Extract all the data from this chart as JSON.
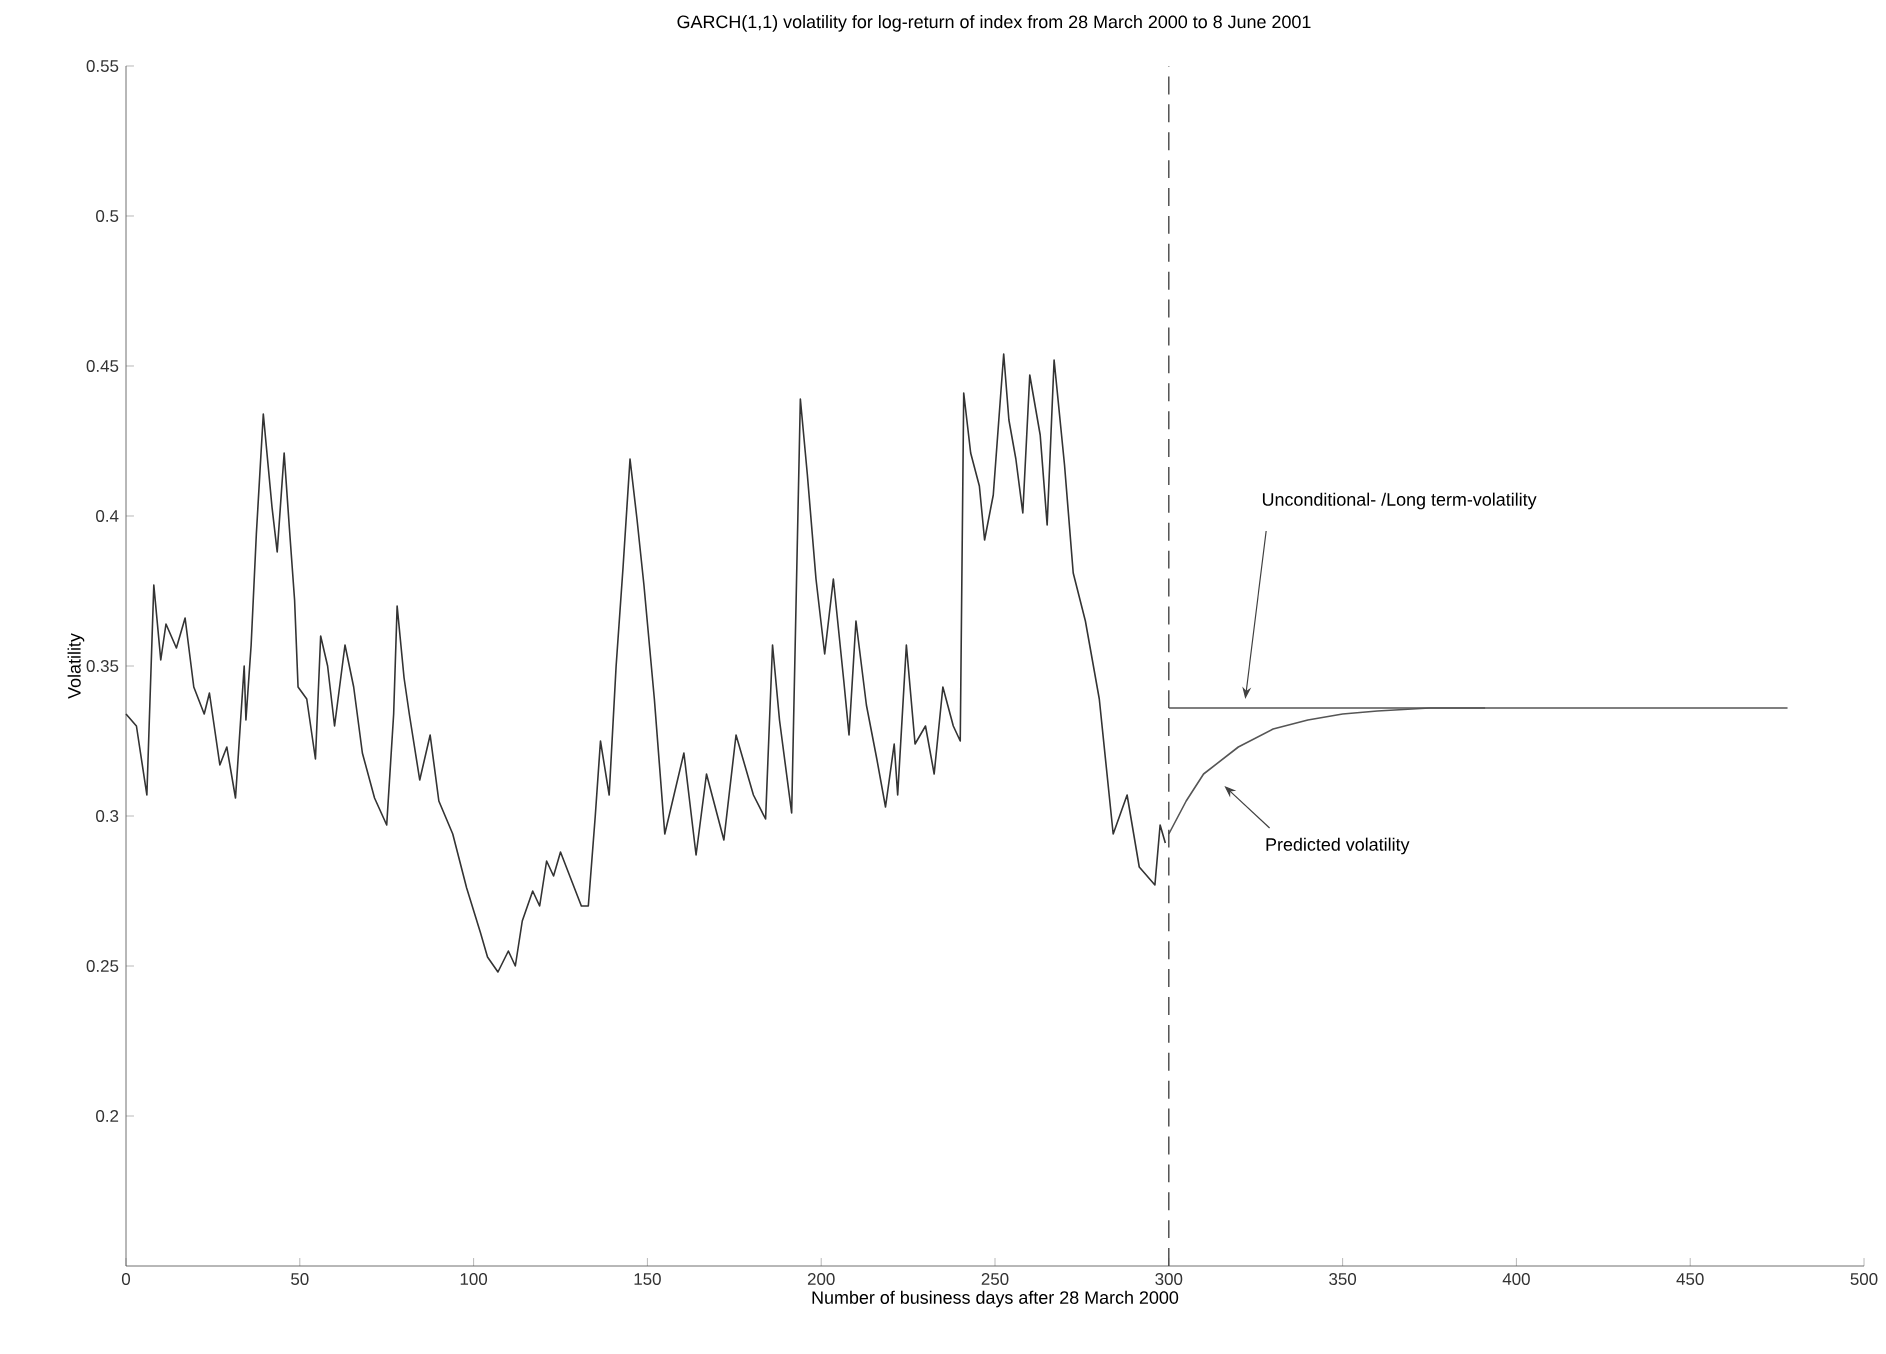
{
  "chart_data": {
    "type": "line",
    "title": "GARCH(1,1) volatility for log-return of index from 28 March 2000 to 8 June 2001",
    "xlabel": "Number of business days after 28 March 2000",
    "ylabel": "Volatility",
    "xlim": [
      0,
      500
    ],
    "ylim": [
      0.15,
      0.55
    ],
    "xticks": [
      0,
      50,
      100,
      150,
      200,
      250,
      300,
      350,
      400,
      450,
      500
    ],
    "yticks": [
      0.2,
      0.25,
      0.3,
      0.35,
      0.4,
      0.45,
      0.5,
      0.55
    ],
    "grid": false,
    "marker": "none",
    "line_style": "solid",
    "tick_labels": true,
    "series": [
      {
        "color": "#333333",
        "x": [
          0,
          3,
          6,
          8,
          10,
          11.5,
          14.5,
          17,
          19.5,
          22.5,
          24,
          27,
          29,
          31.5,
          34,
          34.5,
          36,
          37.5,
          39.5,
          42,
          43.5,
          45.5,
          47,
          48.5,
          49.5,
          52,
          54.5,
          56,
          58,
          60,
          63,
          65.5,
          68,
          71.5,
          75,
          77,
          78,
          80,
          81.5,
          84.5,
          87.5,
          90,
          94,
          98,
          102,
          104,
          107,
          110,
          112,
          114,
          117,
          119,
          121,
          123,
          125,
          127,
          129,
          131,
          133,
          135,
          136.5,
          139,
          141,
          143,
          145,
          147,
          149,
          152,
          155,
          160.5,
          164,
          167,
          172,
          175.5,
          180.5,
          184,
          186,
          188,
          191.5,
          194,
          196,
          198.5,
          201,
          203.5,
          206.5,
          208,
          210,
          213,
          216,
          218.5,
          221,
          222,
          224.5,
          227,
          230,
          232.5,
          235,
          238,
          240,
          241,
          243,
          245.5,
          247,
          249.5,
          252.5,
          254,
          256,
          258,
          260,
          263,
          265,
          267,
          270,
          272.5,
          276,
          280,
          284,
          288,
          291.5,
          296,
          297.5,
          299
        ],
        "values": [
          0.334,
          0.33,
          0.307,
          0.377,
          0.352,
          0.364,
          0.356,
          0.366,
          0.343,
          0.334,
          0.341,
          0.317,
          0.323,
          0.306,
          0.35,
          0.332,
          0.357,
          0.394,
          0.434,
          0.403,
          0.388,
          0.421,
          0.396,
          0.372,
          0.343,
          0.339,
          0.319,
          0.36,
          0.35,
          0.33,
          0.357,
          0.343,
          0.321,
          0.306,
          0.297,
          0.334,
          0.37,
          0.346,
          0.334,
          0.312,
          0.327,
          0.305,
          0.294,
          0.276,
          0.261,
          0.253,
          0.248,
          0.255,
          0.25,
          0.265,
          0.275,
          0.27,
          0.285,
          0.28,
          0.288,
          0.282,
          0.276,
          0.27,
          0.27,
          0.3,
          0.325,
          0.307,
          0.35,
          0.383,
          0.419,
          0.399,
          0.377,
          0.339,
          0.294,
          0.321,
          0.287,
          0.314,
          0.292,
          0.327,
          0.307,
          0.299,
          0.357,
          0.332,
          0.301,
          0.439,
          0.414,
          0.379,
          0.354,
          0.379,
          0.345,
          0.327,
          0.365,
          0.337,
          0.319,
          0.303,
          0.324,
          0.307,
          0.357,
          0.324,
          0.33,
          0.314,
          0.343,
          0.33,
          0.325,
          0.441,
          0.421,
          0.41,
          0.392,
          0.407,
          0.454,
          0.432,
          0.419,
          0.401,
          0.447,
          0.427,
          0.397,
          0.452,
          0.417,
          0.381,
          0.365,
          0.339,
          0.294,
          0.307,
          0.283,
          0.277,
          0.297,
          0.291
        ]
      },
      {
        "color": "#555555",
        "x": [
          300,
          305,
          310,
          320,
          330,
          340,
          350,
          360,
          375,
          391
        ],
        "values": [
          0.294,
          0.305,
          0.314,
          0.323,
          0.329,
          0.332,
          0.334,
          0.335,
          0.336,
          0.336
        ]
      },
      {
        "color": "#555555",
        "x": [
          300,
          478
        ],
        "values": [
          0.336,
          0.336
        ]
      }
    ],
    "ref_lines": [
      {
        "axis": "x",
        "value": 300,
        "color": "#444444",
        "line_style": "dashed"
      }
    ],
    "annotations": [
      "Unconditional- /Long term-volatility",
      "Predicted volatility"
    ]
  }
}
